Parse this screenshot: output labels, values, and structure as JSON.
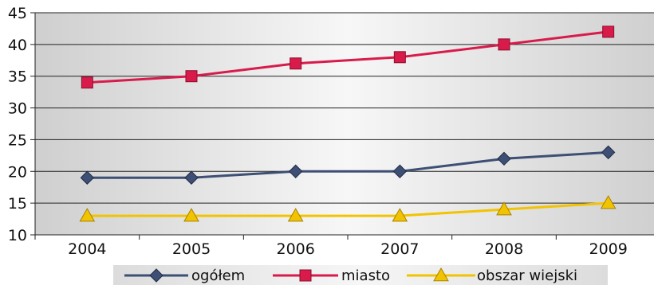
{
  "chart_data": {
    "type": "line",
    "title": "",
    "xlabel": "",
    "ylabel": "",
    "categories": [
      "2004",
      "2005",
      "2006",
      "2007",
      "2008",
      "2009"
    ],
    "ylim": [
      10,
      45
    ],
    "yticks": [
      10,
      15,
      20,
      25,
      30,
      35,
      40,
      45
    ],
    "grid": true,
    "legend_position": "bottom",
    "series": [
      {
        "name": "ogółem",
        "values": [
          19,
          19,
          20,
          20,
          22,
          23
        ],
        "color": "#3d4f74",
        "marker": "diamond"
      },
      {
        "name": "miasto",
        "values": [
          34,
          35,
          37,
          38,
          40,
          42
        ],
        "color": "#d81b4a",
        "marker": "square"
      },
      {
        "name": "obszar wiejski",
        "values": [
          13,
          13,
          13,
          13,
          14,
          15
        ],
        "color": "#f2c300",
        "marker": "triangle"
      }
    ]
  }
}
